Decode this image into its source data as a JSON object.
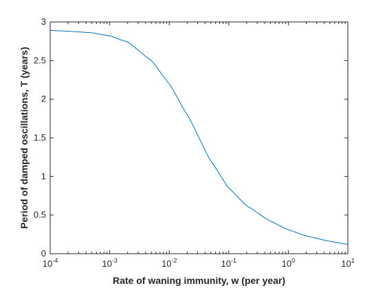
{
  "chart_data": {
    "type": "line",
    "title": "",
    "xlabel": "Rate of waning immunity, w (per year)",
    "ylabel": "Period of damped oscillations, T (years)",
    "xscale": "log",
    "xlim": [
      0.0001,
      10
    ],
    "ylim": [
      0,
      3
    ],
    "grid": false,
    "x_ticks": [
      {
        "base": "10",
        "exp": "-4"
      },
      {
        "base": "10",
        "exp": "-3"
      },
      {
        "base": "10",
        "exp": "-2"
      },
      {
        "base": "10",
        "exp": "-1"
      },
      {
        "base": "10",
        "exp": "0"
      },
      {
        "base": "10",
        "exp": "1"
      }
    ],
    "y_ticks": [
      "0",
      "0.5",
      "1",
      "1.5",
      "2",
      "2.5",
      "3"
    ],
    "series_color": "#0072BD",
    "series": [
      {
        "x": [
          0.0001,
          0.0002,
          0.0005,
          0.001,
          0.002,
          0.005,
          0.01,
          0.02,
          0.05,
          0.1,
          0.2,
          0.5,
          1,
          2,
          5,
          10
        ],
        "values": [
          2.89,
          2.88,
          2.86,
          2.82,
          2.74,
          2.5,
          2.2,
          1.8,
          1.2,
          0.85,
          0.62,
          0.42,
          0.31,
          0.23,
          0.16,
          0.12
        ]
      }
    ]
  }
}
